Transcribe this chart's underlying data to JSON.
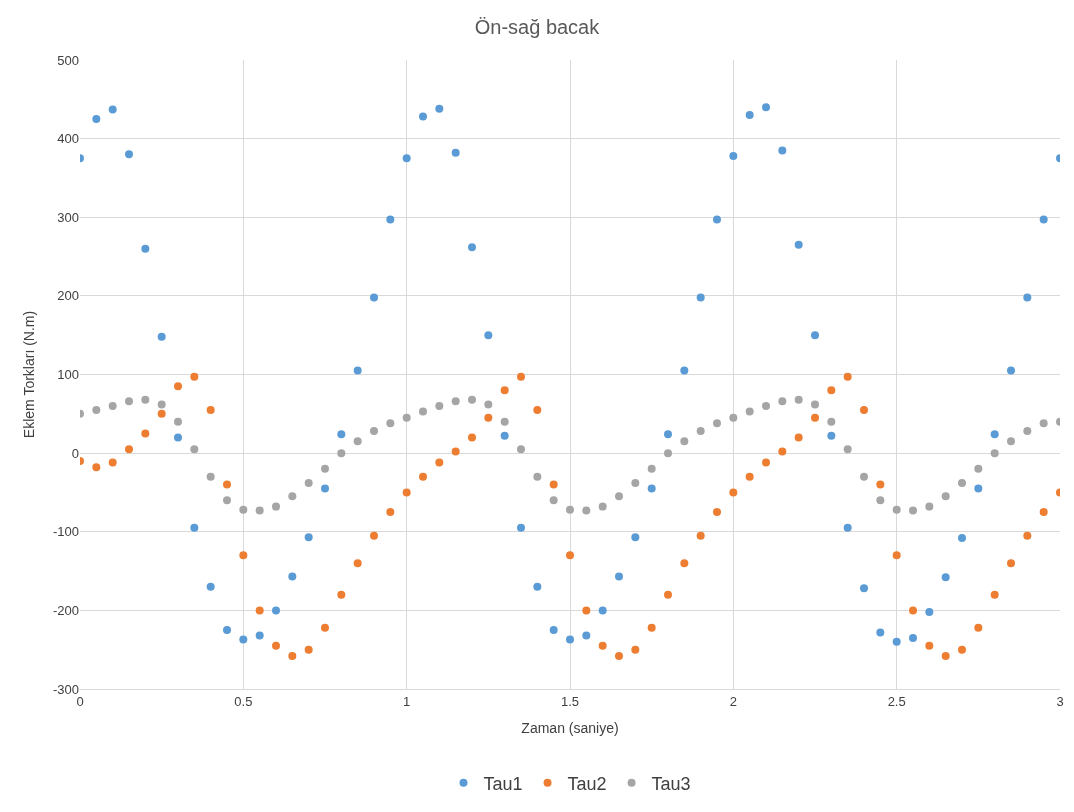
{
  "chart_data": {
    "type": "scatter",
    "title": "Ön-sağ bacak",
    "xlabel": "Zaman (saniye)",
    "ylabel": "Eklem Torkları (N.m)",
    "x": [
      0,
      0.05,
      0.1,
      0.15,
      0.2,
      0.25,
      0.3,
      0.35,
      0.4,
      0.45,
      0.5,
      0.55,
      0.6,
      0.65,
      0.7,
      0.75,
      0.8,
      0.85,
      0.9,
      0.95,
      1,
      1.05,
      1.1,
      1.15,
      1.2,
      1.25,
      1.3,
      1.35,
      1.4,
      1.45,
      1.5,
      1.55,
      1.6,
      1.65,
      1.7,
      1.75,
      1.8,
      1.85,
      1.9,
      1.95,
      2,
      2.05,
      2.1,
      2.15,
      2.2,
      2.25,
      2.3,
      2.35,
      2.4,
      2.45,
      2.5,
      2.55,
      2.6,
      2.65,
      2.7,
      2.75,
      2.8,
      2.85,
      2.9,
      2.95,
      3
    ],
    "series": [
      {
        "name": "Tau1",
        "color": "#5b9bd5",
        "values": [
          375,
          425,
          437,
          380,
          260,
          148,
          20,
          -95,
          -170,
          -225,
          -237,
          -232,
          -200,
          -157,
          -107,
          -45,
          24,
          105,
          198,
          297,
          375,
          428,
          438,
          382,
          262,
          150,
          22,
          -95,
          -170,
          -225,
          -237,
          -232,
          -200,
          -157,
          -107,
          -45,
          24,
          105,
          198,
          297,
          378,
          430,
          440,
          385,
          265,
          150,
          22,
          -95,
          -172,
          -228,
          -240,
          -235,
          -202,
          -158,
          -108,
          -45,
          24,
          105,
          198,
          297,
          375
        ]
      },
      {
        "name": "Tau2",
        "color": "#ed7d31",
        "values": [
          -10,
          -18,
          -12,
          5,
          25,
          50,
          85,
          97,
          55,
          -40,
          -130,
          -200,
          -245,
          -258,
          -250,
          -222,
          -180,
          -140,
          -105,
          -75,
          -50,
          -30,
          -12,
          2,
          20,
          45,
          80,
          97,
          55,
          -40,
          -130,
          -200,
          -245,
          -258,
          -250,
          -222,
          -180,
          -140,
          -105,
          -75,
          -50,
          -30,
          -12,
          2,
          20,
          45,
          80,
          97,
          55,
          -40,
          -130,
          -200,
          -245,
          -258,
          -250,
          -222,
          -180,
          -140,
          -105,
          -75,
          -50
        ]
      },
      {
        "name": "Tau3",
        "color": "#a5a5a5",
        "values": [
          50,
          55,
          60,
          66,
          68,
          62,
          40,
          5,
          -30,
          -60,
          -72,
          -73,
          -68,
          -55,
          -38,
          -20,
          0,
          15,
          28,
          38,
          45,
          53,
          60,
          66,
          68,
          62,
          40,
          5,
          -30,
          -60,
          -72,
          -73,
          -68,
          -55,
          -38,
          -20,
          0,
          15,
          28,
          38,
          45,
          53,
          60,
          66,
          68,
          62,
          40,
          5,
          -30,
          -60,
          -72,
          -73,
          -68,
          -55,
          -38,
          -20,
          0,
          15,
          28,
          38,
          40
        ]
      }
    ],
    "xlim": [
      0,
      3
    ],
    "xticks": [
      0,
      0.5,
      1,
      1.5,
      2,
      2.5,
      3
    ],
    "ylim": [
      -300,
      500
    ],
    "yticks": [
      -300,
      -200,
      -100,
      0,
      100,
      200,
      300,
      400,
      500
    ],
    "grid": true,
    "legend": "bottom",
    "marker": "circle"
  }
}
